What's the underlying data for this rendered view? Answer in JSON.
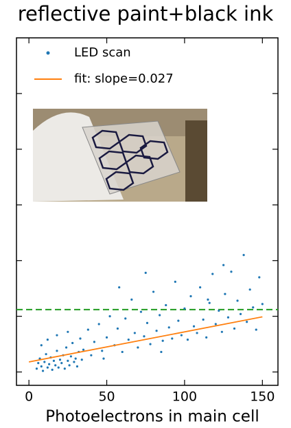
{
  "chart_data": {
    "type": "scatter",
    "title": "reflective paint+black ink",
    "x_label": "Photoelectrons in main cell",
    "xlim": [
      -8,
      160
    ],
    "xticks": [
      0,
      50,
      100,
      150
    ],
    "ylim": [
      -1.2,
      30
    ],
    "yticks": [
      0,
      5,
      10,
      15,
      20,
      25
    ],
    "legend": "upper left",
    "hline": {
      "value": 5.6,
      "color": "#2ca02c",
      "dashed": true
    },
    "series": [
      {
        "name": "LED scan",
        "type": "scatter",
        "color": "#1f77b4",
        "x": [
          5,
          6,
          7,
          8,
          9,
          10,
          11,
          12,
          13,
          14,
          15,
          16,
          17,
          18,
          19,
          20,
          21,
          22,
          23,
          24,
          25,
          26,
          27,
          28,
          29,
          30,
          31,
          32,
          33,
          34,
          8,
          12,
          18,
          25,
          35,
          38,
          40,
          42,
          45,
          47,
          50,
          52,
          55,
          57,
          60,
          62,
          64,
          66,
          68,
          70,
          72,
          74,
          76,
          78,
          80,
          82,
          84,
          86,
          88,
          90,
          92,
          94,
          96,
          98,
          100,
          102,
          104,
          106,
          108,
          110,
          112,
          114,
          116,
          118,
          120,
          122,
          124,
          126,
          128,
          130,
          132,
          134,
          136,
          138,
          140,
          142,
          144,
          146,
          148,
          150,
          58,
          75,
          115,
          125,
          48,
          85
        ],
        "values": [
          0.3,
          0.8,
          1.2,
          0.5,
          0.1,
          0.9,
          1.6,
          0.4,
          0.7,
          1.3,
          0.2,
          1.0,
          0.6,
          1.9,
          0.4,
          1.1,
          0.8,
          1.5,
          0.3,
          2.2,
          1.0,
          0.6,
          1.4,
          2.6,
          0.9,
          1.2,
          0.5,
          1.8,
          3.0,
          1.1,
          2.4,
          2.9,
          3.3,
          3.6,
          2.0,
          3.8,
          1.5,
          2.7,
          4.3,
          1.9,
          3.1,
          5.0,
          2.4,
          3.9,
          1.8,
          4.8,
          2.9,
          6.5,
          3.5,
          2.2,
          5.4,
          3.2,
          4.4,
          2.5,
          7.2,
          3.7,
          5.1,
          2.8,
          6.0,
          4.0,
          3.0,
          8.1,
          4.6,
          3.3,
          5.7,
          2.9,
          6.8,
          4.1,
          3.5,
          7.6,
          4.7,
          3.1,
          6.2,
          8.8,
          4.3,
          5.5,
          3.6,
          7.0,
          4.9,
          9.0,
          3.9,
          6.4,
          5.2,
          10.5,
          4.5,
          7.4,
          5.8,
          3.8,
          8.5,
          6.1,
          7.6,
          8.9,
          6.5,
          9.6,
          1.2,
          1.8
        ]
      },
      {
        "name": "fit: slope=0.027",
        "type": "line",
        "color": "#ff7f0e",
        "x": [
          0,
          150
        ],
        "values": [
          0.9,
          4.95
        ]
      }
    ]
  }
}
